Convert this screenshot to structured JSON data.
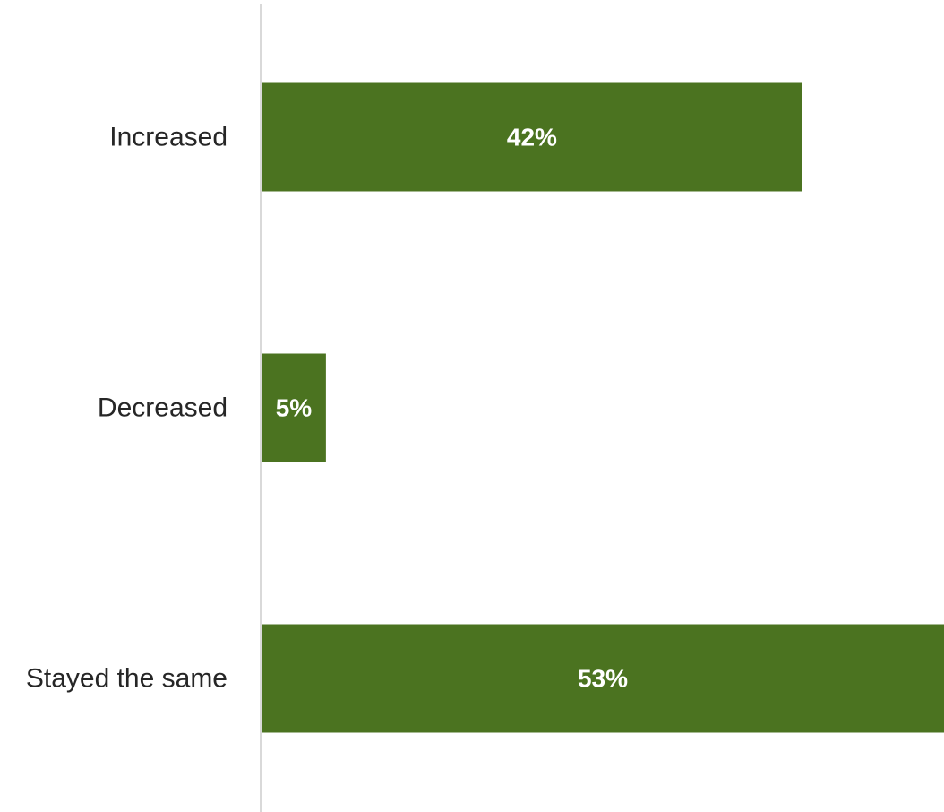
{
  "chart_data": {
    "type": "bar",
    "orientation": "horizontal",
    "categories": [
      "Increased",
      "Decreased",
      "Stayed the same"
    ],
    "values": [
      42,
      5,
      53
    ],
    "data_labels": [
      "42%",
      "5%",
      "53%"
    ],
    "unit": "%",
    "xlim": [
      0,
      53
    ],
    "grid": false,
    "legend": "none",
    "bar_color": "#4b7320",
    "axis_color": "#d9d9d9"
  }
}
